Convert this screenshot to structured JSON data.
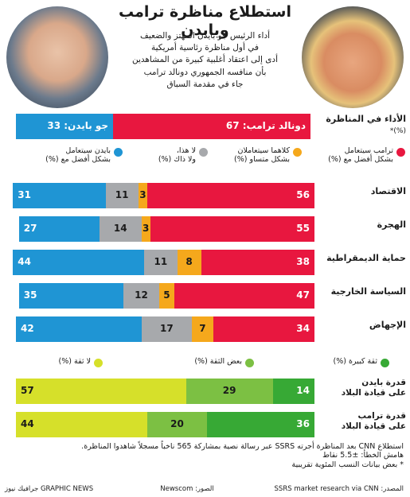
{
  "header": {
    "title": "استطلاع مناظرة ترامب وبايدن",
    "subtitle": "أداء الرئيس جو بايدن المهتز والضعيف\nفي أول مناظرة رئاسية أمريكية\nأدى إلى اعتقاد أغلبية كبيرة من المشاهدين\nبأن منافسه الجمهوري دونالد ترامب\nجاء في مقدمة السباق"
  },
  "chart_data": [
    {
      "type": "stacked-bar",
      "orientation": "horizontal",
      "xlim": [
        0,
        100
      ],
      "categories": [
        "الأداء في المناظرة"
      ],
      "note": "(%)*",
      "series": [
        {
          "color": "#e8173f",
          "label_color": "#ffffff",
          "values": [
            67
          ],
          "value_labels": [
            "دونالد ترامب: 67"
          ]
        },
        {
          "color": "#1f95d4",
          "label_color": "#ffffff",
          "values": [
            33
          ],
          "value_labels": [
            "جو بايدن: 33"
          ]
        }
      ]
    },
    {
      "type": "stacked-bar",
      "orientation": "horizontal",
      "xlim": [
        0,
        100
      ],
      "categories": [
        "الاقتصاد",
        "الهجرة",
        "حماية الديمقراطية",
        "السياسة الخارجية",
        "الإجهاض"
      ],
      "series": [
        {
          "name": "ترامب سيتعامل\nبشكل أفضل مع (%)",
          "color": "#e8173f",
          "label_color": "#ffffff",
          "values": [
            56,
            55,
            38,
            47,
            34
          ]
        },
        {
          "name": "كلاهما سيتعاملان\nبشكل متساو (%)",
          "color": "#f5a81c",
          "label_color": "#1a1a1a",
          "values": [
            3,
            3,
            8,
            5,
            7
          ]
        },
        {
          "name": "لا هذا،\nولا ذاك (%)",
          "color": "#a7a9ac",
          "label_color": "#1a1a1a",
          "values": [
            11,
            14,
            11,
            12,
            17
          ]
        },
        {
          "name": "بايدن سيتعامل\nبشكل أفضل مع (%)",
          "color": "#1f95d4",
          "label_color": "#ffffff",
          "values": [
            31,
            27,
            44,
            35,
            42
          ]
        }
      ]
    },
    {
      "type": "stacked-bar",
      "orientation": "horizontal",
      "xlim": [
        0,
        100
      ],
      "categories": [
        "قدرة بايدن\nعلى قيادة البلاد",
        "قدرة ترامب\nعلى قيادة البلاد"
      ],
      "series": [
        {
          "name": "ثقة كبيرة (%)",
          "color": "#37a935",
          "label_color": "#ffffff",
          "values": [
            14,
            36
          ]
        },
        {
          "name": "بعض الثقة (%)",
          "color": "#7cc043",
          "label_color": "#1a1a1a",
          "values": [
            29,
            20
          ]
        },
        {
          "name": "لا ثقة (%)",
          "color": "#d6e02a",
          "label_color": "#1a1a1a",
          "values": [
            57,
            44
          ]
        }
      ]
    }
  ],
  "footer": {
    "notes": [
      "استطلاع CNN بعد المناظرة أجرته SSRS عبر رسالة نصية بمشاركة 565 ناخباً مسجلاً شاهدوا المناظرة.",
      "هامش الخطأ: ±5.5 نقاط",
      "* بعض بيانات النسب المئوية تقريبية"
    ],
    "source": "المصدر: SSRS market research via CNN",
    "photos": "الصور: Newscom",
    "brand": "GRAPHIC NEWS جرافيك نيوز"
  }
}
